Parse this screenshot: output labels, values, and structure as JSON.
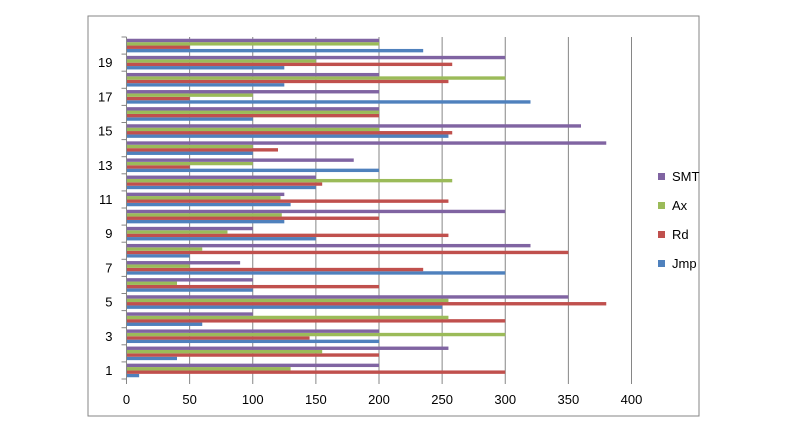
{
  "chart_data": {
    "type": "bar",
    "orientation": "horizontal",
    "categories": [
      "1",
      "2",
      "3",
      "4",
      "5",
      "6",
      "7",
      "8",
      "9",
      "10",
      "11",
      "12",
      "13",
      "14",
      "15",
      "16",
      "17",
      "18",
      "19",
      "20"
    ],
    "y_tick_labels": [
      "1",
      "3",
      "5",
      "7",
      "9",
      "11",
      "13",
      "15",
      "17",
      "19"
    ],
    "x_ticks": [
      0,
      50,
      100,
      150,
      200,
      250,
      300,
      350,
      400
    ],
    "xlim": [
      0,
      400
    ],
    "grid": "vertical",
    "legend_position": "right",
    "series": [
      {
        "name": "Jmp",
        "color": "#4f81bd",
        "values": [
          10,
          40,
          200,
          60,
          250,
          100,
          300,
          50,
          150,
          125,
          130,
          150,
          200,
          100,
          255,
          100,
          320,
          125,
          125,
          235
        ]
      },
      {
        "name": "Rd",
        "color": "#c0504d",
        "values": [
          300,
          200,
          145,
          300,
          380,
          200,
          235,
          350,
          255,
          200,
          255,
          155,
          50,
          120,
          258,
          200,
          50,
          255,
          258,
          50
        ]
      },
      {
        "name": "Ax",
        "color": "#9bbb59",
        "values": [
          130,
          155,
          300,
          255,
          255,
          40,
          50,
          60,
          80,
          123,
          122,
          258,
          100,
          100,
          200,
          200,
          100,
          300,
          150,
          200
        ]
      },
      {
        "name": "SMT",
        "color": "#8064a2",
        "values": [
          200,
          255,
          200,
          100,
          350,
          100,
          90,
          320,
          100,
          300,
          125,
          150,
          180,
          380,
          360,
          200,
          200,
          200,
          300,
          200
        ]
      }
    ]
  }
}
